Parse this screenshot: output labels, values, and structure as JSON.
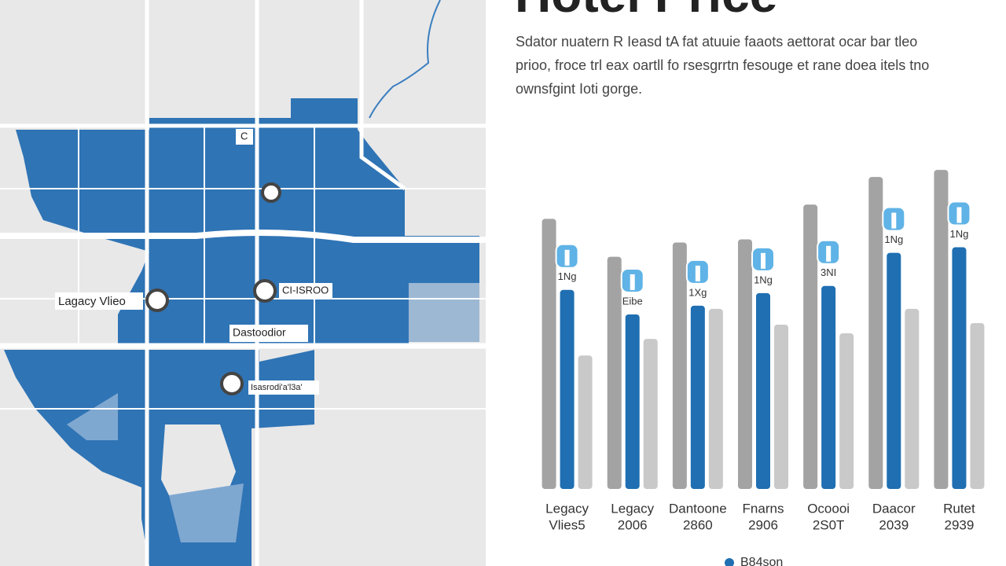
{
  "header": {
    "title": "Hotel Price",
    "subtitle": [
      "Sdator nuatern R Ieasd tA fat atuuie faaots aettorat ocar bar tleo",
      "prioo, froce trl eax oartll fo rsesgrrtn fesouge et rane doea itels tno",
      "ownsfgint Ioti gorge."
    ]
  },
  "map": {
    "labels": [
      "Lagacy Vlieo",
      "CI-ISROO",
      "Dastoodior",
      "Isasrodi'a'l3a'",
      "C"
    ]
  },
  "chart_data": {
    "type": "bar",
    "categories": [
      [
        "Legacy",
        "Vlies5"
      ],
      [
        "Legacy",
        "2006"
      ],
      [
        "Dantoone",
        "2860"
      ],
      [
        "Fnarns",
        "2906"
      ],
      [
        "Ocoooi",
        "2S0T"
      ],
      [
        "Daacor",
        "2039"
      ],
      [
        "Rutet",
        "2939"
      ]
    ],
    "ylim": [
      0,
      420
    ],
    "series": [
      {
        "color": "#a3a3a3",
        "values": [
          342,
          294,
          312,
          316,
          360,
          395,
          404
        ]
      },
      {
        "name": "B84son",
        "color": "#1f6fb2",
        "values": [
          252,
          221,
          232,
          248,
          257,
          299,
          306
        ]
      },
      {
        "color": "#c9c9c9",
        "values": [
          169,
          190,
          228,
          208,
          197,
          228,
          210
        ]
      }
    ],
    "annotations": [
      "1Ng",
      "Eibe",
      "1Xg",
      "1Ng",
      "3NI",
      "1Ng",
      "1Ng"
    ]
  }
}
